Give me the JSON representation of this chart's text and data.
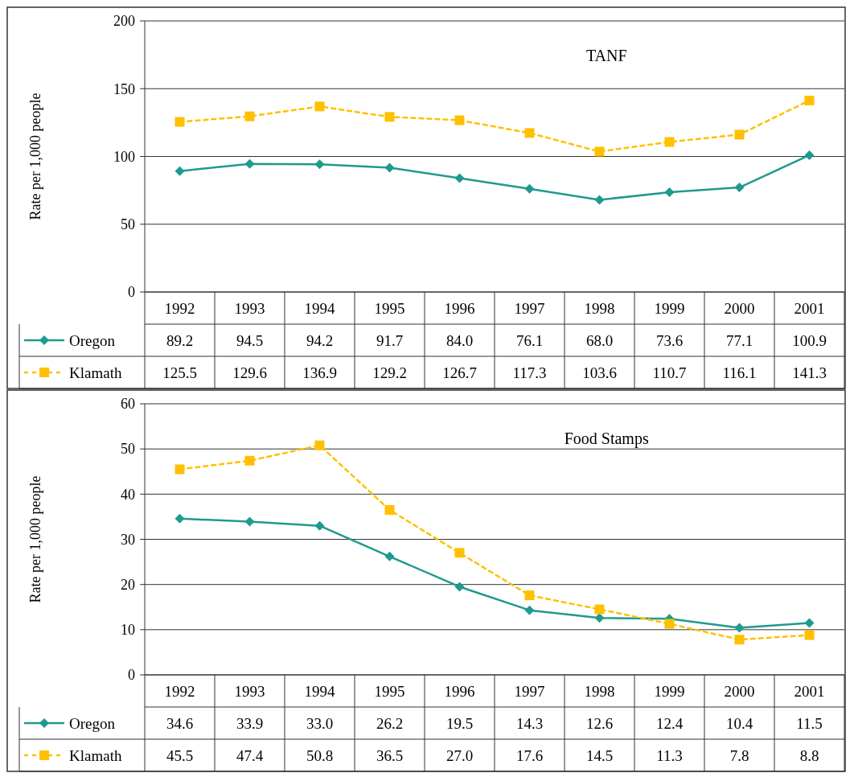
{
  "chart_data": [
    {
      "type": "line",
      "title": "TANF",
      "ylabel": "Rate per 1,000 people",
      "categories": [
        "1992",
        "1993",
        "1994",
        "1995",
        "1996",
        "1997",
        "1998",
        "1999",
        "2000",
        "2001"
      ],
      "ylim": [
        0,
        200
      ],
      "yticks": [
        0,
        50,
        100,
        150,
        200
      ],
      "grid": "y",
      "legend": "bottom",
      "series": [
        {
          "name": "Oregon",
          "color": "#1f9a8e",
          "marker": "diamond",
          "line_style": "solid",
          "values": [
            89.2,
            94.5,
            94.2,
            91.7,
            84.0,
            76.1,
            68.0,
            73.6,
            77.1,
            100.9
          ],
          "value_labels": [
            "89.2",
            "94.5",
            "94.2",
            "91.7",
            "84.0",
            "76.1",
            "68.0",
            "73.6",
            "77.1",
            "100.9"
          ]
        },
        {
          "name": "Klamath",
          "color": "#ffc000",
          "marker": "square",
          "line_style": "dashed",
          "values": [
            125.5,
            129.6,
            136.9,
            129.2,
            126.7,
            117.3,
            103.6,
            110.7,
            116.1,
            141.3
          ],
          "value_labels": [
            "125.5",
            "129.6",
            "136.9",
            "129.2",
            "126.7",
            "117.3",
            "103.6",
            "110.7",
            "116.1",
            "141.3"
          ]
        }
      ]
    },
    {
      "type": "line",
      "title": "Food Stamps",
      "ylabel": "Rate per 1,000 people",
      "categories": [
        "1992",
        "1993",
        "1994",
        "1995",
        "1996",
        "1997",
        "1998",
        "1999",
        "2000",
        "2001"
      ],
      "ylim": [
        0,
        60
      ],
      "yticks": [
        0,
        10,
        20,
        30,
        40,
        50,
        60
      ],
      "grid": "y",
      "legend": "bottom",
      "series": [
        {
          "name": "Oregon",
          "color": "#1f9a8e",
          "marker": "diamond",
          "line_style": "solid",
          "values": [
            34.6,
            33.9,
            33.0,
            26.2,
            19.5,
            14.3,
            12.6,
            12.4,
            10.4,
            11.5
          ],
          "value_labels": [
            "34.6",
            "33.9",
            "33.0",
            "26.2",
            "19.5",
            "14.3",
            "12.6",
            "12.4",
            "10.4",
            "11.5"
          ]
        },
        {
          "name": "Klamath",
          "color": "#ffc000",
          "marker": "square",
          "line_style": "dashed",
          "values": [
            45.5,
            47.4,
            50.8,
            36.5,
            27.0,
            17.6,
            14.5,
            11.3,
            7.8,
            8.8
          ],
          "value_labels": [
            "45.5",
            "47.4",
            "50.8",
            "36.5",
            "27.0",
            "17.6",
            "14.5",
            "11.3",
            "7.8",
            "8.8"
          ]
        }
      ]
    }
  ]
}
